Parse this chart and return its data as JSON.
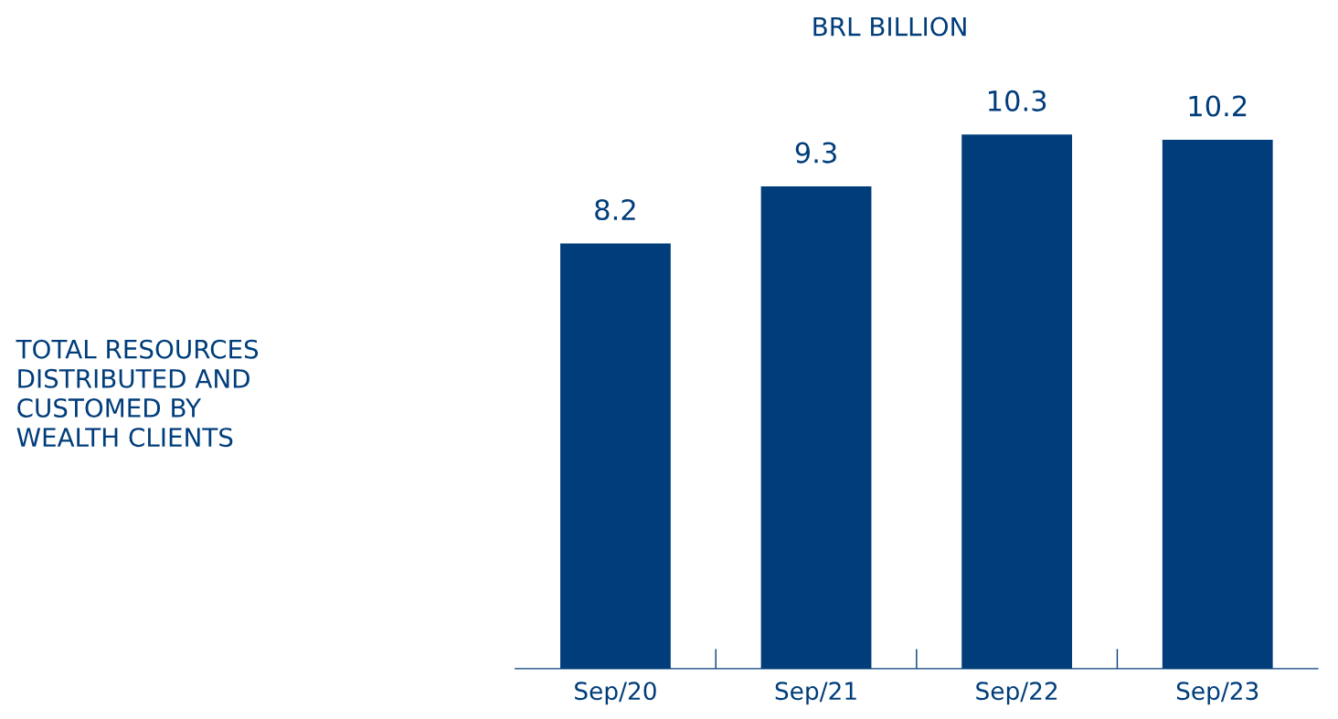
{
  "chart_data": {
    "type": "bar",
    "title": "BRL BILLION",
    "categories": [
      "Sep/20",
      "Sep/21",
      "Sep/22",
      "Sep/23"
    ],
    "values": [
      8.2,
      9.3,
      10.3,
      10.2
    ],
    "color": "#003d7a",
    "data_labels": true,
    "annotations": [
      "TOTAL RESOURCES\nDISTRIBUTED AND\nCUSTOMED BY\nWEALTH CLIENTS"
    ]
  }
}
